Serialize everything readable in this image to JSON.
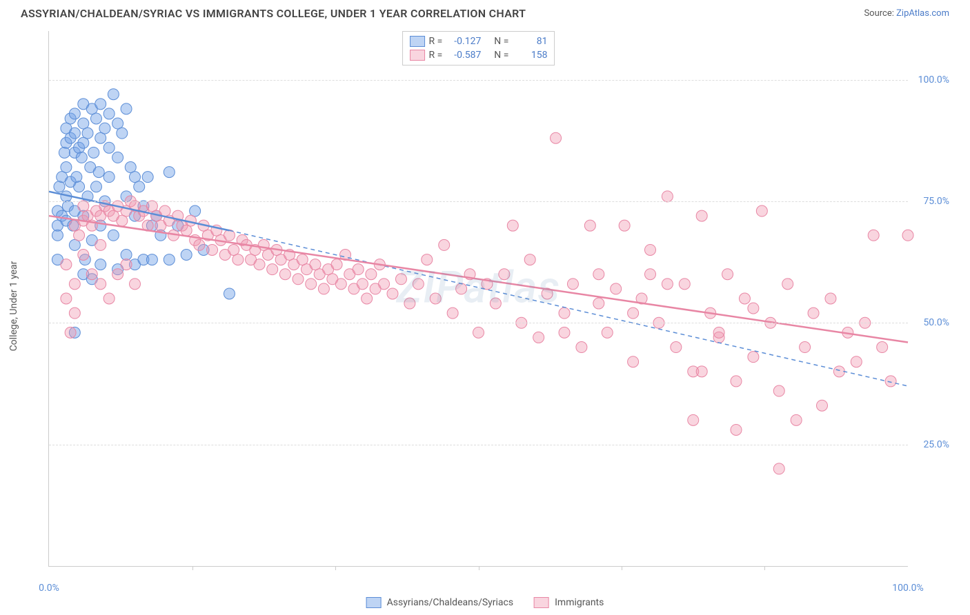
{
  "title": "ASSYRIAN/CHALDEAN/SYRIAC VS IMMIGRANTS COLLEGE, UNDER 1 YEAR CORRELATION CHART",
  "source_label": "Source:",
  "source_name": "ZipAtlas.com",
  "ylabel": "College, Under 1 year",
  "watermark": "ZIPatlas",
  "xlim": [
    0,
    100
  ],
  "ylim": [
    0,
    110
  ],
  "ytick_positions": [
    25,
    50,
    75,
    100
  ],
  "ytick_labels": [
    "25.0%",
    "50.0%",
    "75.0%",
    "100.0%"
  ],
  "xtick_positions": [
    0,
    100
  ],
  "xtick_labels": [
    "0.0%",
    "100.0%"
  ],
  "xtick_minor": [
    16.67,
    33.33,
    50,
    66.67,
    83.33
  ],
  "gridline_color": "#dddddd",
  "axis_color": "#cccccc",
  "tick_label_color": "#5b8dd6",
  "series": [
    {
      "name": "Assyrians/Chaldeans/Syriacs",
      "color_fill": "rgba(110,160,230,0.45)",
      "color_stroke": "#5b8dd6",
      "r_value": "-0.127",
      "n_value": "81",
      "regression": {
        "x1": 0,
        "y1": 77,
        "x2": 21,
        "y2": 69,
        "style": "solid"
      },
      "regression_ext": {
        "x1": 21,
        "y1": 69,
        "x2": 100,
        "y2": 37,
        "style": "dashed"
      },
      "points": [
        [
          1,
          73
        ],
        [
          1,
          68
        ],
        [
          1,
          70
        ],
        [
          1.2,
          78
        ],
        [
          1.5,
          80
        ],
        [
          1.5,
          72
        ],
        [
          1.8,
          85
        ],
        [
          2,
          90
        ],
        [
          2,
          87
        ],
        [
          2,
          82
        ],
        [
          2,
          76
        ],
        [
          2,
          71
        ],
        [
          2.2,
          74
        ],
        [
          2.5,
          92
        ],
        [
          2.5,
          88
        ],
        [
          2.5,
          79
        ],
        [
          2.8,
          70
        ],
        [
          3,
          93
        ],
        [
          3,
          89
        ],
        [
          3,
          85
        ],
        [
          3,
          73
        ],
        [
          3,
          66
        ],
        [
          3.2,
          80
        ],
        [
          3.5,
          86
        ],
        [
          3.5,
          78
        ],
        [
          3.8,
          84
        ],
        [
          4,
          95
        ],
        [
          4,
          91
        ],
        [
          4,
          87
        ],
        [
          4,
          60
        ],
        [
          4,
          72
        ],
        [
          4.2,
          63
        ],
        [
          4.5,
          89
        ],
        [
          4.5,
          76
        ],
        [
          4.8,
          82
        ],
        [
          5,
          94
        ],
        [
          5,
          67
        ],
        [
          5,
          59
        ],
        [
          5.2,
          85
        ],
        [
          5.5,
          92
        ],
        [
          5.5,
          78
        ],
        [
          5.8,
          81
        ],
        [
          6,
          95
        ],
        [
          6,
          88
        ],
        [
          6,
          70
        ],
        [
          6,
          62
        ],
        [
          6.5,
          90
        ],
        [
          6.5,
          75
        ],
        [
          7,
          93
        ],
        [
          7,
          86
        ],
        [
          7,
          80
        ],
        [
          7.5,
          97
        ],
        [
          7.5,
          68
        ],
        [
          8,
          91
        ],
        [
          8,
          84
        ],
        [
          8,
          61
        ],
        [
          8.5,
          89
        ],
        [
          9,
          94
        ],
        [
          9,
          76
        ],
        [
          9,
          64
        ],
        [
          9.5,
          82
        ],
        [
          10,
          80
        ],
        [
          10,
          72
        ],
        [
          10,
          62
        ],
        [
          10.5,
          78
        ],
        [
          11,
          74
        ],
        [
          11,
          63
        ],
        [
          11.5,
          80
        ],
        [
          12,
          70
        ],
        [
          12,
          63
        ],
        [
          12.5,
          72
        ],
        [
          13,
          68
        ],
        [
          14,
          81
        ],
        [
          14,
          63
        ],
        [
          15,
          70
        ],
        [
          16,
          64
        ],
        [
          17,
          73
        ],
        [
          18,
          65
        ],
        [
          21,
          56
        ],
        [
          3,
          48
        ],
        [
          1,
          63
        ]
      ]
    },
    {
      "name": "Immigrants",
      "color_fill": "rgba(240,150,175,0.4)",
      "color_stroke": "#e886a4",
      "r_value": "-0.587",
      "n_value": "158",
      "regression": {
        "x1": 0,
        "y1": 72,
        "x2": 100,
        "y2": 46,
        "style": "solid"
      },
      "points": [
        [
          2,
          62
        ],
        [
          2,
          55
        ],
        [
          2.5,
          48
        ],
        [
          3,
          52
        ],
        [
          3,
          70
        ],
        [
          3.5,
          68
        ],
        [
          4,
          71
        ],
        [
          4,
          74
        ],
        [
          4.5,
          72
        ],
        [
          5,
          70
        ],
        [
          5.5,
          73
        ],
        [
          6,
          72
        ],
        [
          6,
          66
        ],
        [
          6.5,
          74
        ],
        [
          7,
          73
        ],
        [
          7.5,
          72
        ],
        [
          8,
          74
        ],
        [
          8.5,
          71
        ],
        [
          9,
          73
        ],
        [
          9.5,
          75
        ],
        [
          10,
          74
        ],
        [
          10.5,
          72
        ],
        [
          11,
          73
        ],
        [
          11.5,
          70
        ],
        [
          12,
          74
        ],
        [
          12.5,
          72
        ],
        [
          13,
          70
        ],
        [
          13.5,
          73
        ],
        [
          14,
          71
        ],
        [
          14.5,
          68
        ],
        [
          15,
          72
        ],
        [
          15.5,
          70
        ],
        [
          16,
          69
        ],
        [
          16.5,
          71
        ],
        [
          17,
          67
        ],
        [
          17.5,
          66
        ],
        [
          18,
          70
        ],
        [
          18.5,
          68
        ],
        [
          19,
          65
        ],
        [
          19.5,
          69
        ],
        [
          20,
          67
        ],
        [
          20.5,
          64
        ],
        [
          21,
          68
        ],
        [
          21.5,
          65
        ],
        [
          22,
          63
        ],
        [
          22.5,
          67
        ],
        [
          23,
          66
        ],
        [
          23.5,
          63
        ],
        [
          24,
          65
        ],
        [
          24.5,
          62
        ],
        [
          25,
          66
        ],
        [
          25.5,
          64
        ],
        [
          26,
          61
        ],
        [
          26.5,
          65
        ],
        [
          27,
          63
        ],
        [
          27.5,
          60
        ],
        [
          28,
          64
        ],
        [
          28.5,
          62
        ],
        [
          29,
          59
        ],
        [
          29.5,
          63
        ],
        [
          30,
          61
        ],
        [
          30.5,
          58
        ],
        [
          31,
          62
        ],
        [
          31.5,
          60
        ],
        [
          32,
          57
        ],
        [
          32.5,
          61
        ],
        [
          33,
          59
        ],
        [
          33.5,
          62
        ],
        [
          34,
          58
        ],
        [
          34.5,
          64
        ],
        [
          35,
          60
        ],
        [
          35.5,
          57
        ],
        [
          36,
          61
        ],
        [
          36.5,
          58
        ],
        [
          37,
          55
        ],
        [
          37.5,
          60
        ],
        [
          38,
          57
        ],
        [
          38.5,
          62
        ],
        [
          39,
          58
        ],
        [
          40,
          56
        ],
        [
          41,
          59
        ],
        [
          42,
          54
        ],
        [
          43,
          58
        ],
        [
          44,
          63
        ],
        [
          45,
          55
        ],
        [
          46,
          66
        ],
        [
          47,
          52
        ],
        [
          48,
          57
        ],
        [
          49,
          60
        ],
        [
          50,
          48
        ],
        [
          51,
          58
        ],
        [
          52,
          54
        ],
        [
          53,
          60
        ],
        [
          54,
          70
        ],
        [
          55,
          50
        ],
        [
          56,
          63
        ],
        [
          57,
          47
        ],
        [
          58,
          56
        ],
        [
          59,
          88
        ],
        [
          60,
          52
        ],
        [
          61,
          58
        ],
        [
          62,
          45
        ],
        [
          63,
          70
        ],
        [
          64,
          54
        ],
        [
          65,
          48
        ],
        [
          66,
          57
        ],
        [
          67,
          70
        ],
        [
          68,
          42
        ],
        [
          69,
          55
        ],
        [
          70,
          60
        ],
        [
          71,
          50
        ],
        [
          72,
          76
        ],
        [
          73,
          45
        ],
        [
          74,
          58
        ],
        [
          75,
          40
        ],
        [
          76,
          72
        ],
        [
          77,
          52
        ],
        [
          78,
          47
        ],
        [
          79,
          60
        ],
        [
          80,
          38
        ],
        [
          81,
          55
        ],
        [
          82,
          43
        ],
        [
          83,
          73
        ],
        [
          84,
          50
        ],
        [
          85,
          36
        ],
        [
          86,
          58
        ],
        [
          87,
          30
        ],
        [
          88,
          45
        ],
        [
          89,
          52
        ],
        [
          90,
          33
        ],
        [
          91,
          55
        ],
        [
          92,
          40
        ],
        [
          93,
          48
        ],
        [
          94,
          42
        ],
        [
          95,
          50
        ],
        [
          96,
          68
        ],
        [
          97,
          45
        ],
        [
          98,
          38
        ],
        [
          3,
          58
        ],
        [
          4,
          64
        ],
        [
          5,
          60
        ],
        [
          6,
          58
        ],
        [
          7,
          55
        ],
        [
          8,
          60
        ],
        [
          9,
          62
        ],
        [
          10,
          58
        ],
        [
          60,
          48
        ],
        [
          75,
          30
        ],
        [
          80,
          28
        ],
        [
          85,
          20
        ],
        [
          76,
          40
        ],
        [
          78,
          48
        ],
        [
          82,
          53
        ],
        [
          70,
          65
        ],
        [
          72,
          58
        ],
        [
          68,
          52
        ],
        [
          64,
          60
        ],
        [
          100,
          68
        ]
      ]
    }
  ]
}
